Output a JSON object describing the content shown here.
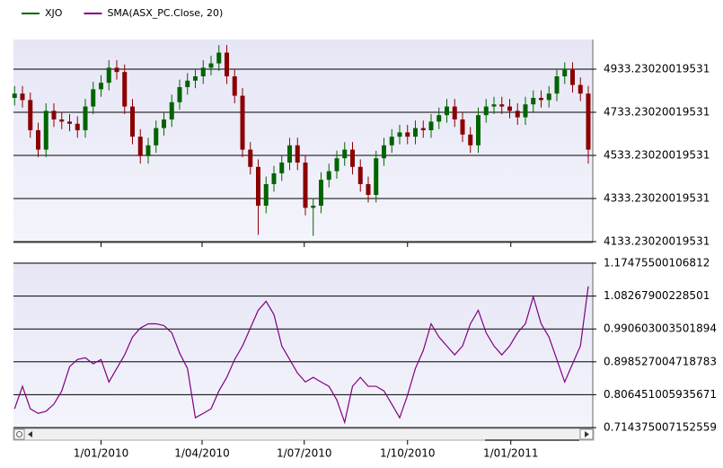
{
  "chart_data": [
    {
      "type": "candlestick",
      "x": [
        "2009-10-16",
        "2009-10-23",
        "2009-10-30",
        "2009-11-06",
        "2009-11-13",
        "2009-11-20",
        "2009-11-27",
        "2009-12-04",
        "2009-12-11",
        "2009-12-18",
        "2009-12-25",
        "2010-01-01",
        "2010-01-08",
        "2010-01-15",
        "2010-01-22",
        "2010-01-29",
        "2010-02-05",
        "2010-02-12",
        "2010-02-19",
        "2010-02-26",
        "2010-03-05",
        "2010-03-12",
        "2010-03-19",
        "2010-03-26",
        "2010-04-02",
        "2010-04-09",
        "2010-04-16",
        "2010-04-23",
        "2010-04-30",
        "2010-05-07",
        "2010-05-14",
        "2010-05-21",
        "2010-05-28",
        "2010-06-04",
        "2010-06-11",
        "2010-06-18",
        "2010-06-25",
        "2010-07-02",
        "2010-07-09",
        "2010-07-16",
        "2010-07-23",
        "2010-07-30",
        "2010-08-06",
        "2010-08-13",
        "2010-08-20",
        "2010-08-27",
        "2010-09-03",
        "2010-09-10",
        "2010-09-17",
        "2010-09-24",
        "2010-10-01",
        "2010-10-08",
        "2010-10-15",
        "2010-10-22",
        "2010-10-29",
        "2010-11-05",
        "2010-11-12",
        "2010-11-19",
        "2010-11-26",
        "2010-12-03",
        "2010-12-10",
        "2010-12-17",
        "2010-12-24",
        "2010-12-31",
        "2011-01-07",
        "2011-01-14",
        "2011-01-21",
        "2011-01-28",
        "2011-02-04",
        "2011-02-11",
        "2011-02-18",
        "2011-02-25",
        "2011-03-04",
        "2011-03-11"
      ],
      "series": [
        {
          "name": "XJO",
          "color": "#006400",
          "down_color": "#8b0000",
          "open": [
            4800,
            4820,
            4790,
            4650,
            4560,
            4740,
            4700,
            4690,
            4680,
            4650,
            4760,
            4840,
            4870,
            4940,
            4920,
            4760,
            4620,
            4530,
            4580,
            4660,
            4700,
            4780,
            4850,
            4880,
            4900,
            4940,
            4960,
            5010,
            4900,
            4810,
            4560,
            4480,
            4300,
            4400,
            4450,
            4500,
            4580,
            4500,
            4290,
            4300,
            4420,
            4460,
            4520,
            4560,
            4480,
            4400,
            4350,
            4520,
            4580,
            4620,
            4640,
            4620,
            4660,
            4650,
            4690,
            4720,
            4760,
            4700,
            4630,
            4580,
            4720,
            4760,
            4770,
            4760,
            4740,
            4710,
            4770,
            4800,
            4790,
            4820,
            4900,
            4930,
            4860,
            4820
          ],
          "high": [
            4855,
            4855,
            4825,
            4685,
            4775,
            4775,
            4735,
            4725,
            4715,
            4795,
            4875,
            4905,
            4975,
            4975,
            4955,
            4795,
            4655,
            4615,
            4695,
            4735,
            4815,
            4885,
            4915,
            4935,
            4975,
            4995,
            5045,
            5045,
            4935,
            4845,
            4595,
            4515,
            4435,
            4485,
            4535,
            4615,
            4615,
            4535,
            4335,
            4455,
            4495,
            4555,
            4595,
            4595,
            4515,
            4435,
            4555,
            4615,
            4655,
            4675,
            4675,
            4695,
            4695,
            4725,
            4755,
            4795,
            4795,
            4735,
            4665,
            4755,
            4795,
            4805,
            4805,
            4795,
            4775,
            4805,
            4835,
            4835,
            4855,
            4935,
            4965,
            4965,
            4895,
            4855
          ],
          "low": [
            4765,
            4755,
            4615,
            4525,
            4525,
            4665,
            4655,
            4645,
            4615,
            4615,
            4725,
            4805,
            4835,
            4885,
            4725,
            4585,
            4495,
            4495,
            4545,
            4625,
            4665,
            4745,
            4815,
            4845,
            4865,
            4905,
            4925,
            4865,
            4775,
            4525,
            4445,
            4165,
            4265,
            4365,
            4415,
            4465,
            4465,
            4255,
            4160,
            4265,
            4385,
            4425,
            4485,
            4445,
            4365,
            4315,
            4315,
            4485,
            4545,
            4585,
            4585,
            4585,
            4615,
            4615,
            4655,
            4685,
            4665,
            4595,
            4545,
            4545,
            4685,
            4725,
            4725,
            4705,
            4675,
            4675,
            4735,
            4755,
            4755,
            4785,
            4865,
            4825,
            4785,
            4495
          ],
          "close": [
            4820,
            4790,
            4650,
            4560,
            4740,
            4700,
            4690,
            4680,
            4650,
            4760,
            4840,
            4870,
            4940,
            4920,
            4760,
            4620,
            4530,
            4580,
            4660,
            4700,
            4780,
            4850,
            4880,
            4900,
            4940,
            4960,
            5010,
            4900,
            4810,
            4560,
            4480,
            4300,
            4400,
            4450,
            4500,
            4580,
            4500,
            4290,
            4300,
            4420,
            4460,
            4520,
            4560,
            4480,
            4400,
            4350,
            4520,
            4580,
            4620,
            4640,
            4620,
            4660,
            4650,
            4690,
            4720,
            4760,
            4700,
            4630,
            4580,
            4720,
            4760,
            4770,
            4760,
            4740,
            4710,
            4770,
            4800,
            4790,
            4820,
            4900,
            4930,
            4860,
            4820,
            4560
          ]
        }
      ],
      "ylim": [
        4133.23020019531,
        5070.73
      ],
      "yticks": [
        4933.23020019531,
        4733.23020019531,
        4533.23020019531,
        4333.23020019531,
        4133.23020019531
      ],
      "grid": true
    },
    {
      "type": "line",
      "x": [
        "2009-10-16",
        "2009-10-23",
        "2009-10-30",
        "2009-11-06",
        "2009-11-13",
        "2009-11-20",
        "2009-11-27",
        "2009-12-04",
        "2009-12-11",
        "2009-12-18",
        "2009-12-25",
        "2010-01-01",
        "2010-01-08",
        "2010-01-15",
        "2010-01-22",
        "2010-01-29",
        "2010-02-05",
        "2010-02-12",
        "2010-02-19",
        "2010-02-26",
        "2010-03-05",
        "2010-03-12",
        "2010-03-19",
        "2010-03-26",
        "2010-04-02",
        "2010-04-09",
        "2010-04-16",
        "2010-04-23",
        "2010-04-30",
        "2010-05-07",
        "2010-05-14",
        "2010-05-21",
        "2010-05-28",
        "2010-06-04",
        "2010-06-11",
        "2010-06-18",
        "2010-06-25",
        "2010-07-02",
        "2010-07-09",
        "2010-07-16",
        "2010-07-23",
        "2010-07-30",
        "2010-08-06",
        "2010-08-13",
        "2010-08-20",
        "2010-08-27",
        "2010-09-03",
        "2010-09-10",
        "2010-09-17",
        "2010-09-24",
        "2010-10-01",
        "2010-10-08",
        "2010-10-15",
        "2010-10-22",
        "2010-10-29",
        "2010-11-05",
        "2010-11-12",
        "2010-11-19",
        "2010-11-26",
        "2010-12-03",
        "2010-12-10",
        "2010-12-17",
        "2010-12-24",
        "2010-12-31",
        "2011-01-07",
        "2011-01-14",
        "2011-01-21",
        "2011-01-28",
        "2011-02-04",
        "2011-02-11",
        "2011-02-18",
        "2011-02-25",
        "2011-03-04",
        "2011-03-11"
      ],
      "series": [
        {
          "name": "SMA(ASX_PC.Close, 20)",
          "color": "#800080",
          "values": [
            0.767,
            0.83,
            0.767,
            0.754,
            0.76,
            0.78,
            0.817,
            0.885,
            0.905,
            0.91,
            0.893,
            0.905,
            0.842,
            0.88,
            0.918,
            0.968,
            0.993,
            1.005,
            1.005,
            1.0,
            0.98,
            0.923,
            0.88,
            0.742,
            0.754,
            0.767,
            0.817,
            0.855,
            0.905,
            0.943,
            0.993,
            1.043,
            1.068,
            1.031,
            0.943,
            0.905,
            0.867,
            0.842,
            0.855,
            0.842,
            0.83,
            0.792,
            0.729,
            0.83,
            0.855,
            0.83,
            0.83,
            0.817,
            0.78,
            0.742,
            0.805,
            0.88,
            0.93,
            1.005,
            0.968,
            0.943,
            0.918,
            0.943,
            1.005,
            1.043,
            0.98,
            0.943,
            0.918,
            0.943,
            0.98,
            1.005,
            1.081,
            1.005,
            0.968,
            0.905,
            0.842,
            0.893,
            0.943,
            1.11
          ]
        }
      ],
      "ylim": [
        0.714375007152559,
        1.17475500106812
      ],
      "yticks": [
        1.17475500106812,
        1.08267900228501,
        0.990603003501894,
        0.898527004718783,
        0.806451005935671,
        0.714375007152559
      ],
      "xlim": [
        "2009-10-15",
        "2011-03-15"
      ],
      "xticks": [
        {
          "value": "2010-01-01",
          "label": "1/01/2010"
        },
        {
          "value": "2010-04-01",
          "label": "1/04/2010"
        },
        {
          "value": "2010-07-01",
          "label": "1/07/2010"
        },
        {
          "value": "2010-10-01",
          "label": "1/10/2010"
        },
        {
          "value": "2011-01-01",
          "label": "1/01/2011"
        }
      ],
      "grid": true
    }
  ]
}
